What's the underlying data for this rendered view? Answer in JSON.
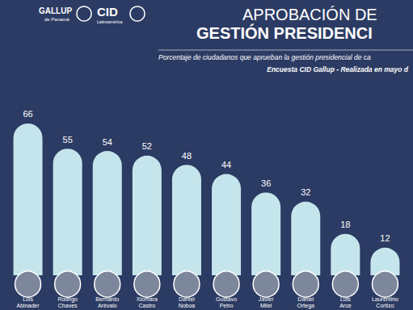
{
  "chart_data": {
    "type": "bar",
    "title": "APROBACIÓN DE\nGESTIÓN PRESIDENCI",
    "subtitle": "Porcentaje de ciudadanos que aprueban la gestión presidencial de ca",
    "annotations": [
      "Encuesta CID Gallup - Realizada en mayo d",
      "GALLUP",
      "de Panamá",
      "CID",
      "Latinoamérica"
    ],
    "categories": [
      "Luis Abinader",
      "Rodrigo Chaves",
      "Bernardo Arévalo",
      "Xiomara Castro",
      "Daniel Noboa",
      "Gustavo Petro",
      "Javier Milei",
      "Daniel Ortega",
      "Luis Arce",
      "Laurentino Cortizo"
    ],
    "values": [
      66,
      55,
      54,
      52,
      48,
      44,
      36,
      32,
      18,
      12
    ],
    "color": "#c5e5ec",
    "ylim": [
      0,
      100
    ],
    "grid": false,
    "data_labels": true,
    "tick_labels": "x"
  }
}
